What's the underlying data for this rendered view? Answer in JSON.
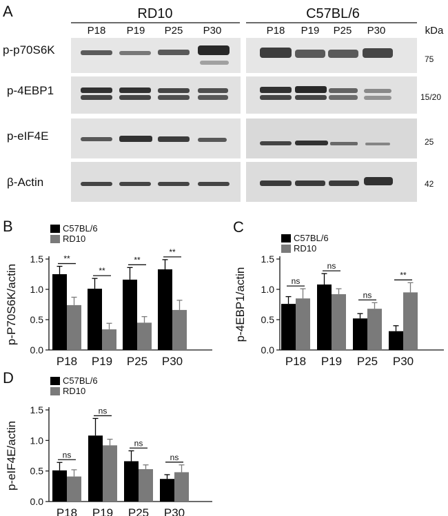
{
  "colors": {
    "c57": "#000000",
    "rd10": "#7a7a7a",
    "blot_bg": "#e4e4e4",
    "band": "#1e1e1e"
  },
  "blot": {
    "panel_letter": "A",
    "groups": [
      {
        "name": "RD10",
        "lanes": [
          "P18",
          "P19",
          "P25",
          "P30"
        ]
      },
      {
        "name": "C57BL/6",
        "lanes": [
          "P18",
          "P19",
          "P25",
          "P30"
        ]
      }
    ],
    "kda_header": "kDa",
    "rows": [
      {
        "protein": "p-p70S6K",
        "kda": "75"
      },
      {
        "protein": "p-4EBP1",
        "kda": "15/20"
      },
      {
        "protein": "p-eIF4E",
        "kda": "25"
      },
      {
        "protein": "β-Actin",
        "kda": "42"
      }
    ]
  },
  "chart_data": [
    {
      "panel": "B",
      "type": "bar",
      "categories": [
        "P18",
        "P19",
        "P25",
        "P30"
      ],
      "ylabel": "p-P70S6K/actin",
      "ylim": [
        0,
        1.5
      ],
      "yticks": [
        "0.0",
        "0.5",
        "1.0",
        "1.5"
      ],
      "legend_placement": "top-left",
      "series": [
        {
          "name": "C57BL/6",
          "color": "#000000",
          "values": [
            1.25,
            1.01,
            1.16,
            1.33
          ],
          "errors": [
            0.13,
            0.17,
            0.2,
            0.16
          ]
        },
        {
          "name": "RD10",
          "color": "#7a7a7a",
          "values": [
            0.74,
            0.34,
            0.45,
            0.66
          ],
          "errors": [
            0.13,
            0.1,
            0.1,
            0.16
          ]
        }
      ],
      "significance": [
        "**",
        "**",
        "**",
        "**"
      ]
    },
    {
      "panel": "C",
      "type": "bar",
      "categories": [
        "P18",
        "P19",
        "P25",
        "P30"
      ],
      "ylabel": "p-4EBP1/actin",
      "ylim": [
        0,
        1.5
      ],
      "yticks": [
        "0.0",
        "0.5",
        "1.0",
        "1.5"
      ],
      "legend_placement": "top-left",
      "series": [
        {
          "name": "C57BL/6",
          "color": "#000000",
          "values": [
            0.76,
            1.08,
            0.52,
            0.31
          ],
          "errors": [
            0.12,
            0.18,
            0.08,
            0.09
          ]
        },
        {
          "name": "RD10",
          "color": "#7a7a7a",
          "values": [
            0.85,
            0.92,
            0.68,
            0.95
          ],
          "errors": [
            0.16,
            0.09,
            0.1,
            0.16
          ]
        }
      ],
      "significance": [
        "ns",
        "ns",
        "ns",
        "**"
      ]
    },
    {
      "panel": "D",
      "type": "bar",
      "categories": [
        "P18",
        "P19",
        "P25",
        "P30"
      ],
      "ylabel": "p-eIF4E/actin",
      "ylim": [
        0,
        1.5
      ],
      "yticks": [
        "0.0",
        "0.5",
        "1.0",
        "1.5"
      ],
      "legend_placement": "top-left",
      "series": [
        {
          "name": "C57BL/6",
          "color": "#000000",
          "values": [
            0.51,
            1.08,
            0.66,
            0.37
          ],
          "errors": [
            0.13,
            0.28,
            0.17,
            0.07
          ]
        },
        {
          "name": "RD10",
          "color": "#7a7a7a",
          "values": [
            0.41,
            0.92,
            0.53,
            0.48
          ],
          "errors": [
            0.11,
            0.1,
            0.07,
            0.12
          ]
        }
      ],
      "significance": [
        "ns",
        "ns",
        "ns",
        "ns"
      ]
    }
  ]
}
